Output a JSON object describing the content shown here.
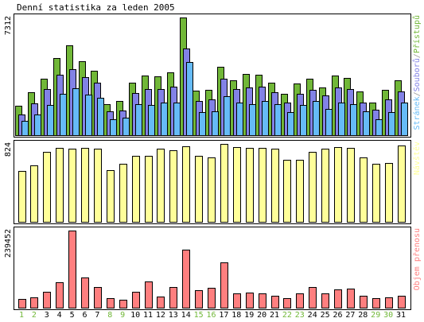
{
  "chart_data": {
    "title": "Denní statistika za leden 2005",
    "categories": [
      "1",
      "2",
      "3",
      "4",
      "5",
      "6",
      "7",
      "8",
      "9",
      "10",
      "11",
      "12",
      "13",
      "14",
      "15",
      "16",
      "17",
      "18",
      "19",
      "20",
      "21",
      "22",
      "23",
      "24",
      "25",
      "26",
      "27",
      "28",
      "29",
      "30",
      "31"
    ],
    "weekend_days": [
      "1",
      "2",
      "8",
      "9",
      "15",
      "16",
      "22",
      "23",
      "29",
      "30"
    ],
    "colors": {
      "pristupu": "#71b738",
      "souboru": "#8282e6",
      "stranek": "#66bbf7",
      "navstev": "#ffff99",
      "objem": "#ff7f7f",
      "weekday_label": "#000000",
      "weekend_label": "#71b738",
      "frame": "#000000",
      "background": "#ffffff"
    },
    "panels": [
      {
        "type": "bar",
        "ymax_label": "7312",
        "ylim": [
          0,
          7312
        ],
        "legend": [
          {
            "text": "Stránek",
            "color": "#66bbf7"
          },
          {
            "text": "/",
            "color": "#999999"
          },
          {
            "text": "Souborů",
            "color": "#8282e6"
          },
          {
            "text": "/",
            "color": "#999999"
          },
          {
            "text": "Přístupů",
            "color": "#71b738"
          }
        ],
        "series": [
          {
            "name": "Přístupů",
            "color": "#71b738",
            "values": [
              1820,
              2650,
              3500,
              4800,
              5600,
              4600,
              4000,
              1950,
              2100,
              3250,
              3700,
              3650,
              3900,
              7312,
              2750,
              2800,
              4250,
              3400,
              3800,
              3750,
              3250,
              2550,
              3200,
              3500,
              2950,
              3700,
              3550,
              2700,
              2050,
              2800,
              3400
            ]
          },
          {
            "name": "Souborů",
            "color": "#8282e6",
            "values": [
              1300,
              2000,
              2850,
              3750,
              4100,
              3600,
              3250,
              1500,
              1550,
              2600,
              2850,
              2850,
              3000,
              5400,
              2100,
              2200,
              3500,
              2850,
              2950,
              3000,
              2650,
              2050,
              2550,
              2800,
              2450,
              2950,
              2850,
              2050,
              1600,
              2200,
              2700
            ]
          },
          {
            "name": "Stránek",
            "color": "#66bbf7",
            "values": [
              900,
              1300,
              1900,
              2550,
              2900,
              2500,
              2300,
              1000,
              1100,
              1950,
              1900,
              2050,
              2050,
              4550,
              1450,
              1500,
              2400,
              2050,
              1950,
              2100,
              1950,
              1450,
              1900,
              2100,
              1650,
              2050,
              1950,
              1500,
              1000,
              1450,
              2050
            ]
          }
        ]
      },
      {
        "type": "bar",
        "ymax_label": "824",
        "ylim": [
          0,
          824
        ],
        "legend": [
          {
            "text": "Návštěv",
            "color": "#ffff99"
          }
        ],
        "series": [
          {
            "name": "Návštěv",
            "color": "#ffff99",
            "values": [
              540,
              600,
              740,
              780,
              770,
              780,
              770,
              550,
              610,
              700,
              700,
              770,
              760,
              800,
              700,
              680,
              824,
              790,
              780,
              780,
              770,
              660,
              660,
              740,
              770,
              790,
              780,
              680,
              610,
              620,
              810
            ]
          }
        ]
      },
      {
        "type": "bar",
        "ymax_label": "239452",
        "ylim": [
          0,
          239452
        ],
        "legend": [
          {
            "text": "Objem přenosu",
            "color": "#ff7f7f"
          }
        ],
        "series": [
          {
            "name": "Objem přenosu",
            "color": "#ff7f7f",
            "values": [
              28000,
              32000,
              50000,
              80000,
              239452,
              95000,
              65000,
              30000,
              25000,
              50000,
              82000,
              35000,
              65000,
              180000,
              55000,
              62000,
              140000,
              45000,
              47000,
              45000,
              37000,
              30000,
              45000,
              65000,
              45000,
              58000,
              60000,
              37000,
              29000,
              33000,
              38000
            ]
          }
        ]
      }
    ]
  }
}
